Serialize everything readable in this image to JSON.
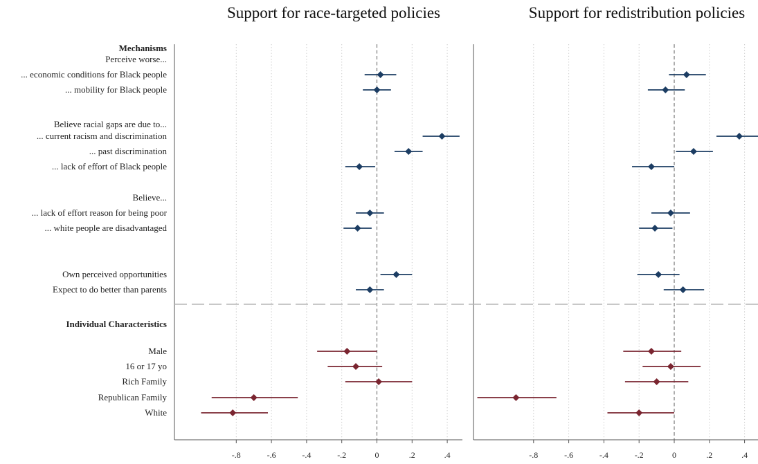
{
  "chart_data": {
    "type": "scatter",
    "subtype": "coefficient-plot",
    "x_ticks": [
      -0.8,
      -0.6,
      -0.4,
      -0.2,
      0,
      0.2,
      0.4
    ],
    "x_tick_labels": [
      "-.8",
      "-.6",
      "-.4",
      "-.2",
      "0",
      ".2",
      ".4"
    ],
    "grid": "vertical dotted",
    "reference_line": 0,
    "section_colors": {
      "Mechanisms": "#1c3d63",
      "Individual Characteristics": "#7a2530"
    },
    "rows": [
      {
        "label": "Mechanisms",
        "kind": "header"
      },
      {
        "label": "Perceive worse...",
        "kind": "subheader"
      },
      {
        "label": "... economic conditions for Black people",
        "kind": "coef",
        "section": "Mechanisms"
      },
      {
        "label": "... mobility for Black people",
        "kind": "coef",
        "section": "Mechanisms"
      },
      {
        "label": "Believe racial gaps are due to...",
        "kind": "subheader"
      },
      {
        "label": "... current racism and discrimination",
        "kind": "coef",
        "section": "Mechanisms"
      },
      {
        "label": "... past discrimination",
        "kind": "coef",
        "section": "Mechanisms"
      },
      {
        "label": "... lack of effort of Black people",
        "kind": "coef",
        "section": "Mechanisms"
      },
      {
        "label": "Believe...",
        "kind": "subheader"
      },
      {
        "label": "... lack of effort reason for being poor",
        "kind": "coef",
        "section": "Mechanisms"
      },
      {
        "label": "... white people are disadvantaged",
        "kind": "coef",
        "section": "Mechanisms"
      },
      {
        "label": "Own perceived opportunities",
        "kind": "coef",
        "section": "Mechanisms"
      },
      {
        "label": "Expect to do better than parents",
        "kind": "coef",
        "section": "Mechanisms"
      },
      {
        "label": "Individual Characteristics",
        "kind": "header"
      },
      {
        "label": "Male",
        "kind": "coef",
        "section": "Individual Characteristics"
      },
      {
        "label": "16 or 17 yo",
        "kind": "coef",
        "section": "Individual Characteristics"
      },
      {
        "label": "Rich Family",
        "kind": "coef",
        "section": "Individual Characteristics"
      },
      {
        "label": "Republican Family",
        "kind": "coef",
        "section": "Individual Characteristics"
      },
      {
        "label": "White",
        "kind": "coef",
        "section": "Individual Characteristics"
      }
    ],
    "panels": [
      {
        "title": "Support for race-targeted policies",
        "estimates": [
          {
            "row": "... economic conditions for Black people",
            "coef": 0.02,
            "lo": -0.07,
            "hi": 0.11
          },
          {
            "row": "... mobility for Black people",
            "coef": 0.0,
            "lo": -0.08,
            "hi": 0.08
          },
          {
            "row": "... current racism and discrimination",
            "coef": 0.37,
            "lo": 0.26,
            "hi": 0.47
          },
          {
            "row": "... past discrimination",
            "coef": 0.18,
            "lo": 0.1,
            "hi": 0.26
          },
          {
            "row": "... lack of effort of Black people",
            "coef": -0.1,
            "lo": -0.18,
            "hi": -0.01
          },
          {
            "row": "... lack of effort reason for being poor",
            "coef": -0.04,
            "lo": -0.12,
            "hi": 0.04
          },
          {
            "row": "... white people are disadvantaged",
            "coef": -0.11,
            "lo": -0.19,
            "hi": -0.03
          },
          {
            "row": "Own perceived opportunities",
            "coef": 0.11,
            "lo": 0.02,
            "hi": 0.2
          },
          {
            "row": "Expect to do better than parents",
            "coef": -0.04,
            "lo": -0.12,
            "hi": 0.04
          },
          {
            "row": "Male",
            "coef": -0.17,
            "lo": -0.34,
            "hi": 0.0
          },
          {
            "row": "16 or 17 yo",
            "coef": -0.12,
            "lo": -0.28,
            "hi": 0.03
          },
          {
            "row": "Rich Family",
            "coef": 0.01,
            "lo": -0.18,
            "hi": 0.2
          },
          {
            "row": "Republican Family",
            "coef": -0.7,
            "lo": -0.94,
            "hi": -0.45
          },
          {
            "row": "White",
            "coef": -0.82,
            "lo": -1.0,
            "hi": -0.62
          }
        ]
      },
      {
        "title": "Support for redistribution policies",
        "estimates": [
          {
            "row": "... economic conditions for Black people",
            "coef": 0.07,
            "lo": -0.03,
            "hi": 0.18
          },
          {
            "row": "... mobility for Black people",
            "coef": -0.05,
            "lo": -0.15,
            "hi": 0.06
          },
          {
            "row": "... current racism and discrimination",
            "coef": 0.37,
            "lo": 0.24,
            "hi": 0.52
          },
          {
            "row": "... past discrimination",
            "coef": 0.11,
            "lo": 0.01,
            "hi": 0.22
          },
          {
            "row": "... lack of effort of Black people",
            "coef": -0.13,
            "lo": -0.24,
            "hi": 0.0
          },
          {
            "row": "... lack of effort reason for being poor",
            "coef": -0.02,
            "lo": -0.13,
            "hi": 0.09
          },
          {
            "row": "... white people are disadvantaged",
            "coef": -0.11,
            "lo": -0.2,
            "hi": -0.01
          },
          {
            "row": "Own perceived opportunities",
            "coef": -0.09,
            "lo": -0.21,
            "hi": 0.03
          },
          {
            "row": "Expect to do better than parents",
            "coef": 0.05,
            "lo": -0.06,
            "hi": 0.17
          },
          {
            "row": "Male",
            "coef": -0.13,
            "lo": -0.29,
            "hi": 0.04
          },
          {
            "row": "16 or 17 yo",
            "coef": -0.02,
            "lo": -0.18,
            "hi": 0.15
          },
          {
            "row": "Rich Family",
            "coef": -0.1,
            "lo": -0.28,
            "hi": 0.08
          },
          {
            "row": "Republican Family",
            "coef": -0.9,
            "lo": -1.12,
            "hi": -0.67
          },
          {
            "row": "White",
            "coef": -0.2,
            "lo": -0.38,
            "hi": 0.0
          }
        ]
      }
    ]
  }
}
